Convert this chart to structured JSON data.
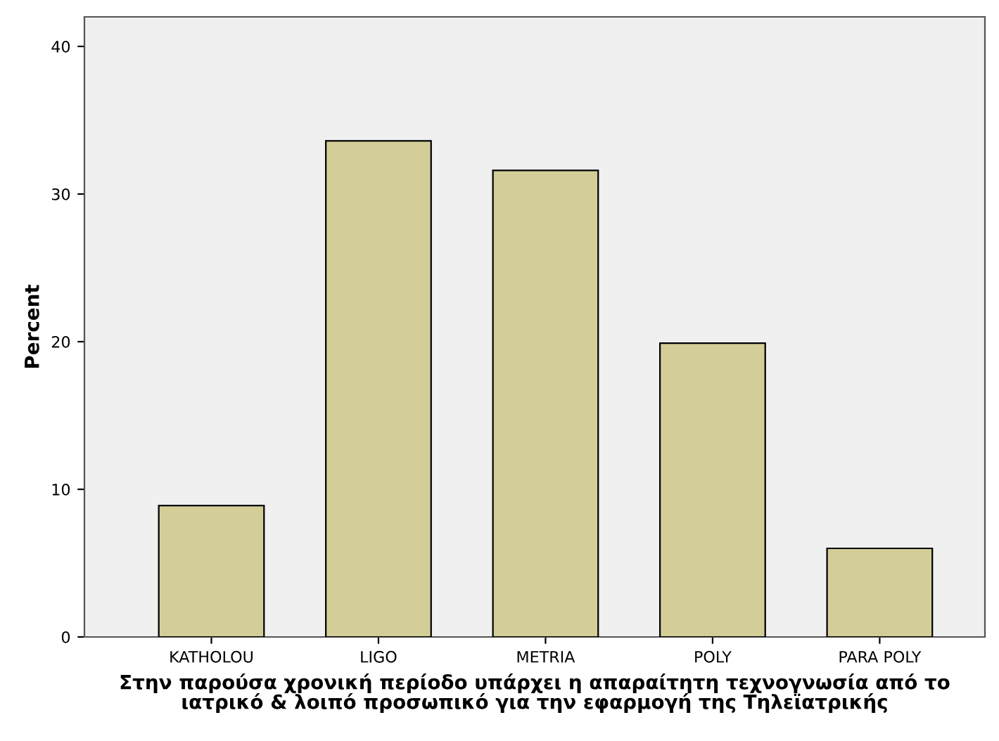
{
  "chart_data": {
    "type": "bar",
    "ylabel": "Percent",
    "xlabel": "Στην παρούσα χρονική περίοδο υπάρχει η απαραίτητη τεχνογνωσία από το\nιατρικό & λοιπό προσωπικό για την εφαρμογή της Τηλεϊατρικής",
    "categories": [
      "KATHOLOU",
      "LIGO",
      "METRIA",
      "POLY",
      "PARA POLY"
    ],
    "values": [
      8.9,
      33.6,
      31.6,
      19.9,
      6.0
    ],
    "color": "#d3ce97",
    "ylim": [
      0,
      42
    ],
    "yticks": [
      0,
      10,
      20,
      30,
      40
    ],
    "grid": false
  }
}
